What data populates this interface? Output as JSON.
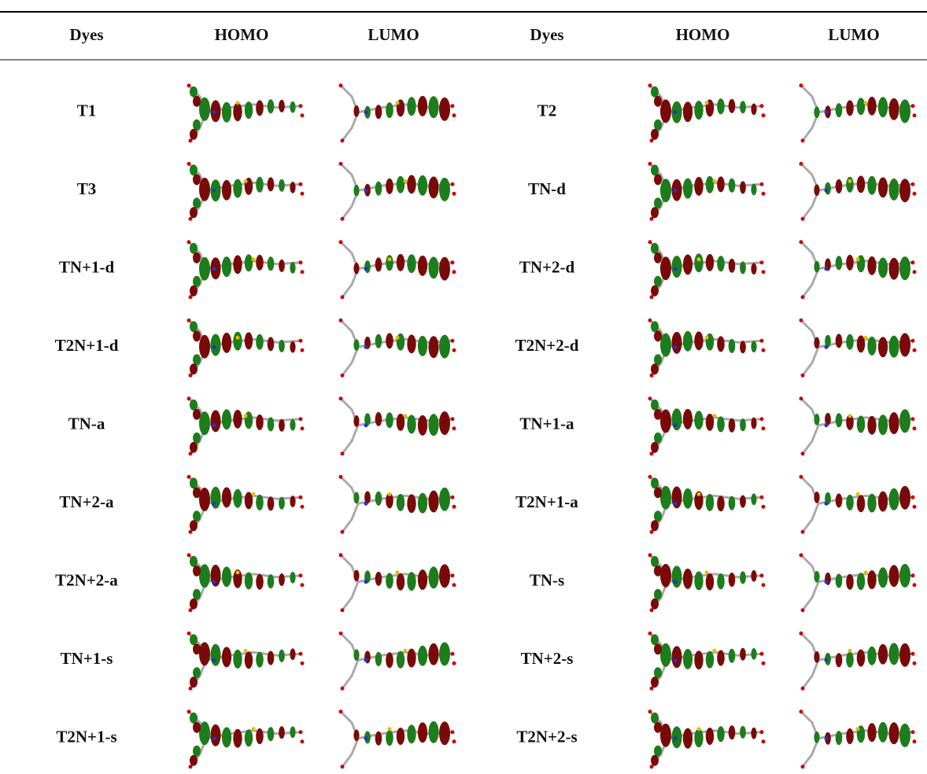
{
  "table": {
    "header": [
      "Dyes",
      "HOMO",
      "LUMO",
      "Dyes",
      "HOMO",
      "LUMO"
    ],
    "rows": [
      [
        "T1",
        "T2"
      ],
      [
        "T3",
        "TN-d"
      ],
      [
        "TN+1-d",
        "TN+2-d"
      ],
      [
        "T2N+1-d",
        "T2N+2-d"
      ],
      [
        "TN-a",
        "TN+1-a"
      ],
      [
        "TN+2-a",
        "T2N+1-a"
      ],
      [
        "T2N+2-a",
        "TN-s"
      ],
      [
        "TN+1-s",
        "TN+2-s"
      ],
      [
        "T2N+1-s",
        "T2N+2-s"
      ]
    ]
  }
}
